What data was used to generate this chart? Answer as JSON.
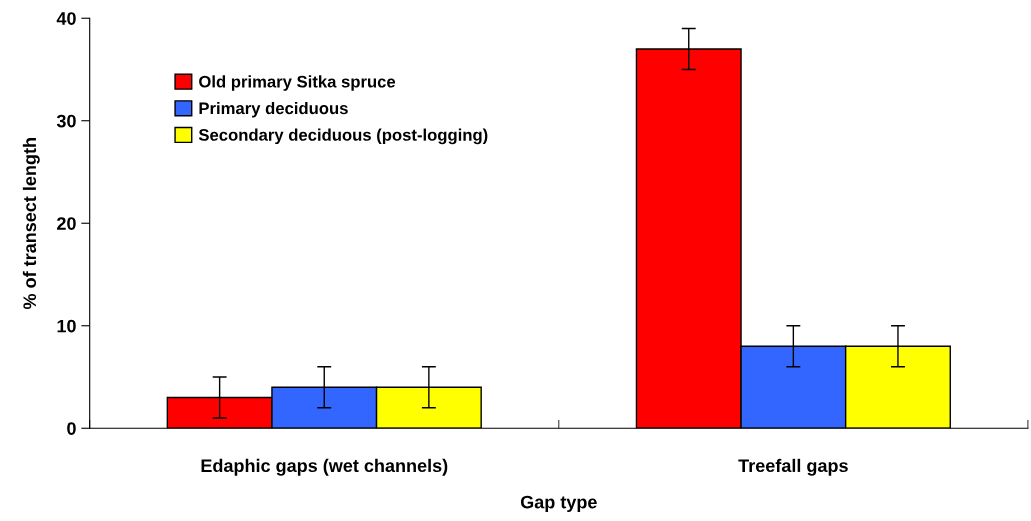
{
  "chart_data": {
    "type": "bar",
    "xlabel": "Gap type",
    "ylabel": "% of transect length",
    "categories": [
      "Edaphic gaps (wet channels)",
      "Treefall gaps"
    ],
    "series": [
      {
        "name": "Old primary Sitka spruce",
        "color": "#ff0000",
        "values": [
          3,
          37
        ],
        "errors": [
          2,
          2
        ]
      },
      {
        "name": "Primary deciduous",
        "color": "#3366ff",
        "values": [
          4,
          8
        ],
        "errors": [
          2,
          2
        ]
      },
      {
        "name": "Secondary deciduous (post-logging)",
        "color": "#ffff00",
        "values": [
          4,
          8
        ],
        "errors": [
          2,
          2
        ]
      }
    ],
    "ylim": [
      0,
      40
    ],
    "yticks": [
      0,
      10,
      20,
      30,
      40
    ],
    "grid": false,
    "legend": "top left"
  }
}
